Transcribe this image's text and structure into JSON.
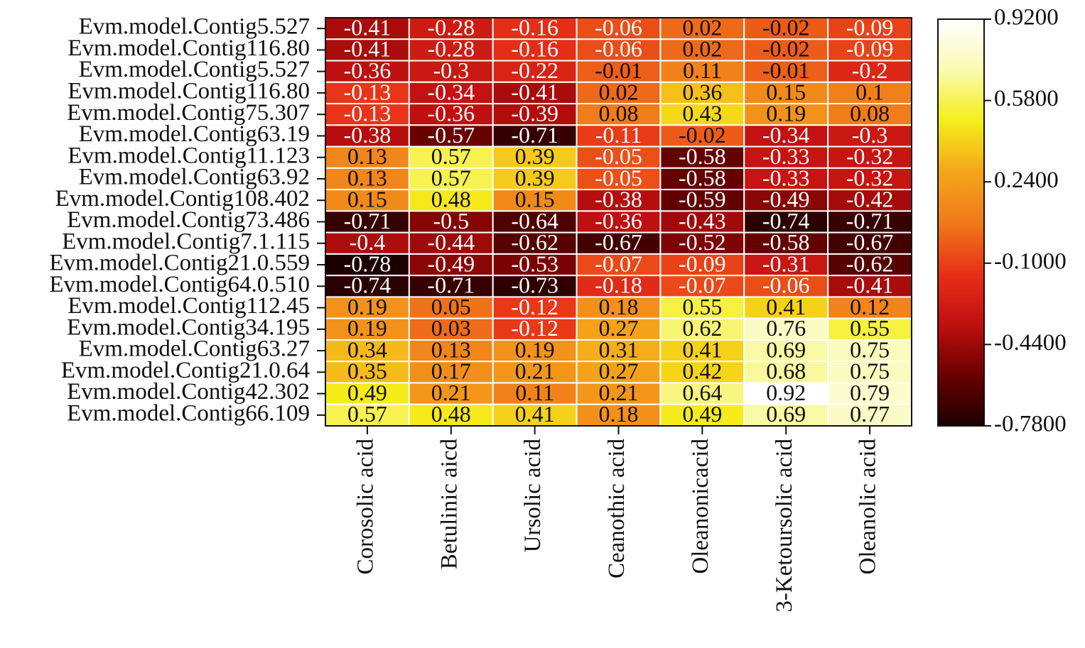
{
  "chart_data": {
    "type": "heatmap",
    "x_categories": [
      "Corosolic acid",
      "Betulinic aicd",
      "Ursolic acid",
      "Ceanothic acid",
      "Oleanonicacid",
      "3-Ketoursolic acid",
      "Oleanolic acid"
    ],
    "y_categories": [
      "Evm.model.Contig5.527",
      "Evm.model.Contig116.80",
      "Evm.model.Contig5.527",
      "Evm.model.Contig116.80",
      "Evm.model.Contig75.307",
      "Evm.model.Contig63.19",
      "Evm.model.Contig11.123",
      "Evm.model.Contig63.92",
      "Evm.model.Contig108.402",
      "Evm.model.Contig73.486",
      "Evm.model.Contig7.1.115",
      "Evm.model.Contig21.0.559",
      "Evm.model.Contig64.0.510",
      "Evm.model.Contig112.45",
      "Evm.model.Contig34.195",
      "Evm.model.Contig63.27",
      "Evm.model.Contig21.0.64",
      "Evm.model.Contig42.302",
      "Evm.model.Contig66.109"
    ],
    "values": [
      [
        -0.41,
        -0.28,
        -0.16,
        -0.06,
        0.02,
        -0.02,
        -0.09
      ],
      [
        -0.41,
        -0.28,
        -0.16,
        -0.06,
        0.02,
        -0.02,
        -0.09
      ],
      [
        -0.36,
        -0.3,
        -0.22,
        -0.01,
        0.11,
        -0.01,
        -0.2
      ],
      [
        -0.13,
        -0.34,
        -0.41,
        0.02,
        0.36,
        0.15,
        0.1
      ],
      [
        -0.13,
        -0.36,
        -0.39,
        0.08,
        0.43,
        0.19,
        0.08
      ],
      [
        -0.38,
        -0.57,
        -0.71,
        -0.11,
        -0.02,
        -0.34,
        -0.3
      ],
      [
        0.13,
        0.57,
        0.39,
        -0.05,
        -0.58,
        -0.33,
        -0.32
      ],
      [
        0.13,
        0.57,
        0.39,
        -0.05,
        -0.58,
        -0.33,
        -0.32
      ],
      [
        0.15,
        0.48,
        0.15,
        -0.38,
        -0.59,
        -0.49,
        -0.42
      ],
      [
        -0.71,
        -0.5,
        -0.64,
        -0.36,
        -0.43,
        -0.74,
        -0.71
      ],
      [
        -0.4,
        -0.44,
        -0.62,
        -0.67,
        -0.52,
        -0.58,
        -0.67
      ],
      [
        -0.78,
        -0.49,
        -0.53,
        -0.07,
        -0.09,
        -0.31,
        -0.62
      ],
      [
        -0.74,
        -0.71,
        -0.73,
        -0.18,
        -0.07,
        -0.06,
        -0.41
      ],
      [
        0.19,
        0.05,
        -0.12,
        0.18,
        0.55,
        0.41,
        0.12
      ],
      [
        0.19,
        0.03,
        -0.12,
        0.27,
        0.62,
        0.76,
        0.55
      ],
      [
        0.34,
        0.13,
        0.19,
        0.31,
        0.41,
        0.69,
        0.75
      ],
      [
        0.35,
        0.17,
        0.21,
        0.27,
        0.42,
        0.68,
        0.75
      ],
      [
        0.49,
        0.21,
        0.11,
        0.21,
        0.64,
        0.92,
        0.79
      ],
      [
        0.57,
        0.48,
        0.41,
        0.18,
        0.49,
        0.69,
        0.77
      ]
    ],
    "clim": [
      -0.78,
      0.92
    ],
    "cticks": [
      {
        "value": 0.92,
        "label": "0.9200"
      },
      {
        "value": 0.58,
        "label": "0.5800"
      },
      {
        "value": 0.24,
        "label": "0.2400"
      },
      {
        "value": -0.1,
        "label": "-0.1000"
      },
      {
        "value": -0.44,
        "label": "-0.4400"
      },
      {
        "value": -0.78,
        "label": "-0.7800"
      }
    ],
    "colormap": [
      "#1c0000",
      "#6a0000",
      "#c01010",
      "#e83018",
      "#f07a1a",
      "#f5a51a",
      "#f5ee1a",
      "#fafab0",
      "#ffffff"
    ]
  }
}
